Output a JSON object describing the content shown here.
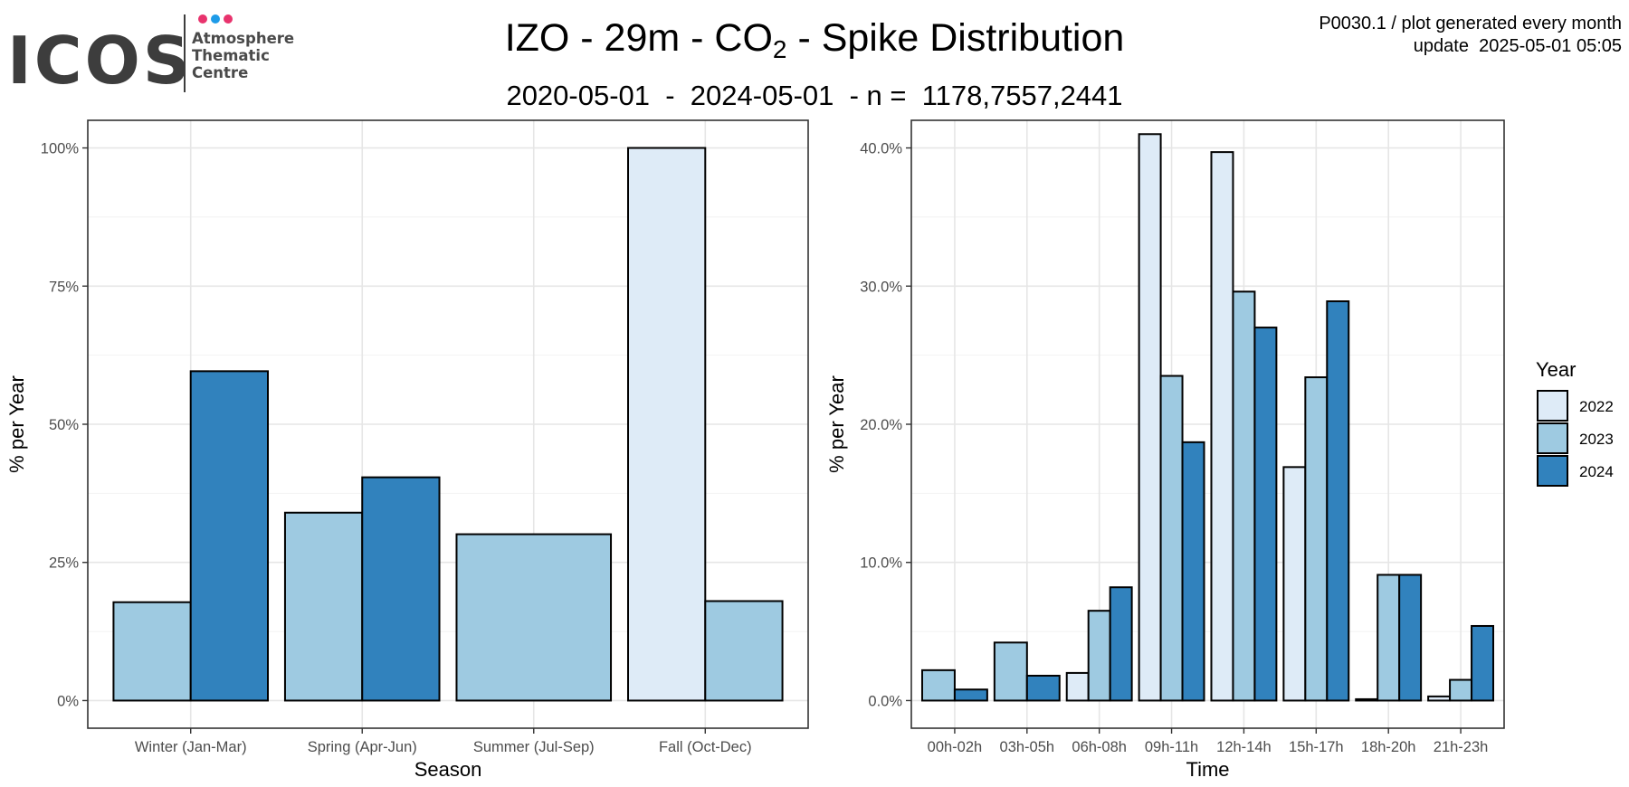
{
  "header": {
    "logo": {
      "brand": "ICOS",
      "lines": [
        "Atmosphere",
        "Thematic",
        "Centre"
      ],
      "dot_colors": [
        "#e8336d",
        "#1e9be8",
        "#e8336d"
      ]
    },
    "title_prefix": "IZO - 29m - CO",
    "title_sub": "2",
    "title_suffix": " - Spike Distribution",
    "subtitle": "2020-05-01  -  2024-05-01  - n =  1178,7557,2441",
    "meta_line1": "P0030.1 / plot generated every month",
    "meta_line2": "update  2025-05-01 05:05"
  },
  "legend": {
    "title": "Year",
    "items": [
      {
        "label": "2022",
        "color": "#deebf7"
      },
      {
        "label": "2023",
        "color": "#9ecae1"
      },
      {
        "label": "2024",
        "color": "#3182bd"
      }
    ]
  },
  "chart_data": [
    {
      "type": "bar",
      "xlabel": "Season",
      "ylabel": "% per Year",
      "categories": [
        "Winter (Jan-Mar)",
        "Spring (Apr-Jun)",
        "Summer (Jul-Sep)",
        "Fall (Oct-Dec)"
      ],
      "ylim": [
        0,
        100
      ],
      "yticks": [
        0,
        25,
        50,
        75,
        100
      ],
      "ytick_labels": [
        "0%",
        "25%",
        "50%",
        "75%",
        "100%"
      ],
      "grid": true,
      "series": [
        {
          "name": "2022",
          "color": "#deebf7",
          "values": [
            null,
            null,
            null,
            100.0
          ]
        },
        {
          "name": "2023",
          "color": "#9ecae1",
          "values": [
            17.8,
            34.0,
            30.1,
            18.0
          ]
        },
        {
          "name": "2024",
          "color": "#3182bd",
          "values": [
            59.6,
            40.4,
            null,
            null
          ]
        }
      ]
    },
    {
      "type": "bar",
      "xlabel": "Time",
      "ylabel": "% per Year",
      "categories": [
        "00h-02h",
        "03h-05h",
        "06h-08h",
        "09h-11h",
        "12h-14h",
        "15h-17h",
        "18h-20h",
        "21h-23h"
      ],
      "ylim": [
        0,
        40
      ],
      "yticks": [
        0,
        10,
        20,
        30,
        40
      ],
      "ytick_labels": [
        "0.0%",
        "10.0%",
        "20.0%",
        "30.0%",
        "40.0%"
      ],
      "grid": true,
      "series": [
        {
          "name": "2022",
          "color": "#deebf7",
          "values": [
            null,
            null,
            2.0,
            41.0,
            39.7,
            16.9,
            0.1,
            0.3
          ]
        },
        {
          "name": "2023",
          "color": "#9ecae1",
          "values": [
            2.2,
            4.2,
            6.5,
            23.5,
            29.6,
            23.4,
            9.1,
            1.5
          ]
        },
        {
          "name": "2024",
          "color": "#3182bd",
          "values": [
            0.8,
            1.8,
            8.2,
            18.7,
            27.0,
            28.9,
            9.1,
            5.4
          ]
        }
      ]
    }
  ]
}
